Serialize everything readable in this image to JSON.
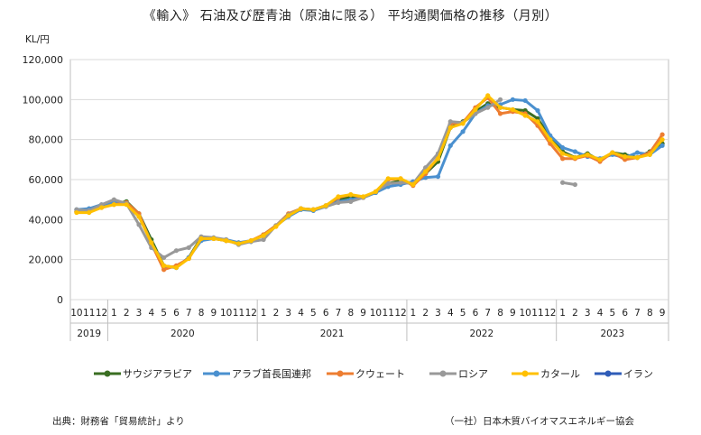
{
  "title": "《輸入》 石油及び歴青油（原油に限る） 平均通関価格の推移（月別）",
  "footer_source": "出典：財務省「貿易統計」より",
  "footer_org": "（一社）日本木質バイオマスエネルギー協会",
  "chart_data": {
    "type": "line",
    "ylabel": "KL/円",
    "ylim": [
      0,
      120000
    ],
    "yticks": [
      "0",
      "20,000",
      "40,000",
      "60,000",
      "80,000",
      "100,000",
      "120,000"
    ],
    "ytick_values": [
      0,
      20000,
      40000,
      60000,
      80000,
      100000,
      120000
    ],
    "grid": "horizontal",
    "legend_position": "bottom",
    "x_month_labels": [
      "10",
      "11",
      "12",
      "1",
      "2",
      "3",
      "4",
      "5",
      "6",
      "7",
      "8",
      "9",
      "10",
      "11",
      "12",
      "1",
      "2",
      "3",
      "4",
      "5",
      "6",
      "7",
      "8",
      "9",
      "10",
      "11",
      "12",
      "1",
      "2",
      "3",
      "4",
      "5",
      "6",
      "7",
      "8",
      "9",
      "10",
      "11",
      "12",
      "1",
      "2",
      "3",
      "4",
      "5",
      "6",
      "7",
      "8",
      "9"
    ],
    "x_year_groups": [
      {
        "label": "2019",
        "start": 0,
        "count": 3
      },
      {
        "label": "2020",
        "start": 3,
        "count": 12
      },
      {
        "label": "2021",
        "start": 15,
        "count": 12
      },
      {
        "label": "2022",
        "start": 27,
        "count": 12
      },
      {
        "label": "2023",
        "start": 39,
        "count": 9
      }
    ],
    "series": [
      {
        "name": "サウジアラビア",
        "color": "#3a6e22",
        "values": [
          44000,
          44500,
          46500,
          48000,
          49000,
          43000,
          30000,
          17000,
          16000,
          21000,
          31000,
          30500,
          29500,
          28500,
          29000,
          32500,
          37000,
          42000,
          45500,
          45000,
          47000,
          50000,
          51500,
          51000,
          53500,
          58000,
          59500,
          58000,
          63000,
          69000,
          86000,
          89000,
          94000,
          98000,
          96000,
          95000,
          94500,
          90500,
          81000,
          74000,
          71000,
          73000,
          69500,
          73500,
          72500,
          71000,
          74000,
          78000
        ]
      },
      {
        "name": "アラブ首長国連邦",
        "color": "#4a90cf",
        "values": [
          45000,
          45500,
          47500,
          48500,
          48500,
          42500,
          28500,
          16500,
          16000,
          21000,
          29500,
          30500,
          30000,
          28500,
          29500,
          32000,
          37000,
          41500,
          45000,
          44500,
          46500,
          49000,
          50000,
          51000,
          53500,
          56500,
          57500,
          59000,
          61000,
          61500,
          77000,
          84000,
          93000,
          97000,
          97500,
          100000,
          99500,
          94500,
          82000,
          76000,
          74000,
          71500,
          70500,
          72500,
          71000,
          73500,
          72500,
          77000
        ]
      },
      {
        "name": "クウェート",
        "color": "#ed7d31",
        "values": [
          44000,
          44000,
          46000,
          47500,
          48500,
          43000,
          28000,
          15000,
          17000,
          20500,
          30500,
          30500,
          29500,
          28000,
          29500,
          32500,
          37000,
          43000,
          45500,
          45000,
          47000,
          51000,
          52500,
          51000,
          54000,
          60000,
          60500,
          57000,
          63000,
          71000,
          88000,
          88500,
          96000,
          101000,
          93000,
          94000,
          93000,
          87000,
          78000,
          70500,
          70500,
          72000,
          69000,
          73500,
          70000,
          71000,
          73500,
          82500
        ]
      },
      {
        "name": "ロシア",
        "color": "#999999",
        "values": [
          45000,
          44500,
          47500,
          50000,
          48000,
          37500,
          26000,
          21000,
          24500,
          26000,
          31500,
          31000,
          30000,
          27500,
          29000,
          30000,
          37000,
          42500,
          45500,
          45000,
          46500,
          48500,
          49000,
          51000,
          54000,
          58000,
          58500,
          58000,
          66000,
          73000,
          89000,
          88500,
          93000,
          96000,
          100000,
          null,
          null,
          null,
          null,
          58500,
          57500,
          null,
          null,
          null,
          null,
          null,
          null,
          null
        ]
      },
      {
        "name": "カタール",
        "color": "#ffc000",
        "values": [
          43500,
          43500,
          46000,
          47500,
          47500,
          41500,
          28500,
          17000,
          16000,
          20500,
          30500,
          30500,
          29500,
          28000,
          29500,
          32000,
          36500,
          42000,
          45500,
          45000,
          47000,
          51500,
          52500,
          51500,
          54000,
          60500,
          60500,
          57500,
          64000,
          70500,
          86000,
          88000,
          95000,
          102000,
          96000,
          95000,
          92000,
          89000,
          80000,
          73000,
          71000,
          72500,
          70000,
          73500,
          71500,
          71000,
          72500,
          80000
        ]
      },
      {
        "name": "イラン",
        "color": "#2f5cb8",
        "values": [
          null,
          null,
          null,
          null,
          null,
          null,
          null,
          null,
          null,
          null,
          null,
          null,
          null,
          null,
          null,
          null,
          null,
          null,
          null,
          null,
          null,
          null,
          null,
          null,
          null,
          null,
          null,
          null,
          null,
          null,
          null,
          null,
          null,
          null,
          null,
          null,
          null,
          null,
          null,
          null,
          null,
          null,
          null,
          null,
          null,
          null,
          null,
          null
        ]
      }
    ]
  }
}
